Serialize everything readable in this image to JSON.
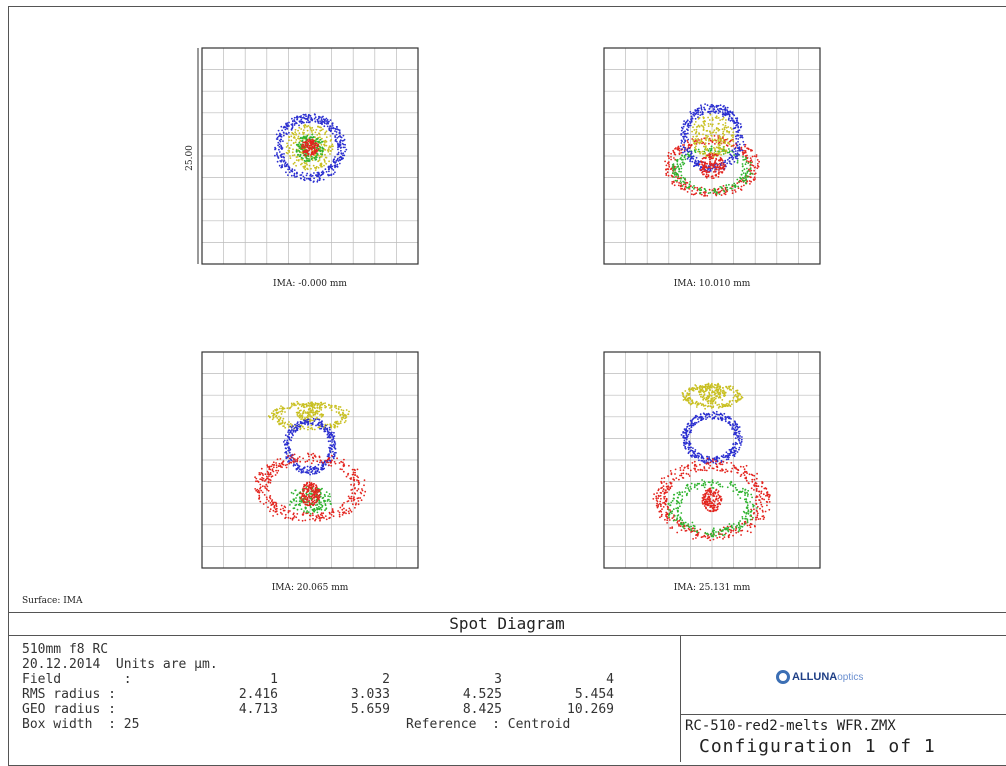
{
  "chart_data": {
    "type": "scatter",
    "title": "Spot Diagram",
    "y_axis_label": "25.00",
    "surface_label": "Surface: IMA",
    "box_width": 25,
    "series_colors": {
      "blue": "#2b2fd0",
      "green": "#2fb32f",
      "red": "#e3241e",
      "yellow": "#c9c022"
    },
    "panels": [
      {
        "field": 1,
        "image_height_label": "IMA: -0.000 mm",
        "rms_radius": 2.416,
        "geo_radius": 4.713
      },
      {
        "field": 2,
        "image_height_label": "IMA: 10.010 mm",
        "rms_radius": 3.033,
        "geo_radius": 5.659
      },
      {
        "field": 3,
        "image_height_label": "IMA: 20.065 mm",
        "rms_radius": 4.525,
        "geo_radius": 8.425
      },
      {
        "field": 4,
        "image_height_label": "IMA: 25.131 mm",
        "rms_radius": 5.454,
        "geo_radius": 10.269
      }
    ]
  },
  "info": {
    "system_name": "510mm f8 RC",
    "date_units": "20.12.2014  Units are μm.",
    "field_label": "Field        :",
    "rms_label": "RMS radius :",
    "geo_label": "GEO radius :",
    "box_label": "Box width  : 25",
    "reference": "Reference  : Centroid",
    "field_numbers": [
      "1",
      "2",
      "3",
      "4"
    ],
    "rms_values": [
      "2.416",
      "3.033",
      "4.525",
      "5.454"
    ],
    "geo_values": [
      "4.713",
      "5.659",
      "8.425",
      "10.269"
    ]
  },
  "right": {
    "logo_brand": "ALLUNA",
    "logo_suffix": "optics",
    "file_name": "RC-510-red2-melts WFR.ZMX",
    "configuration": "Configuration 1 of 1"
  }
}
